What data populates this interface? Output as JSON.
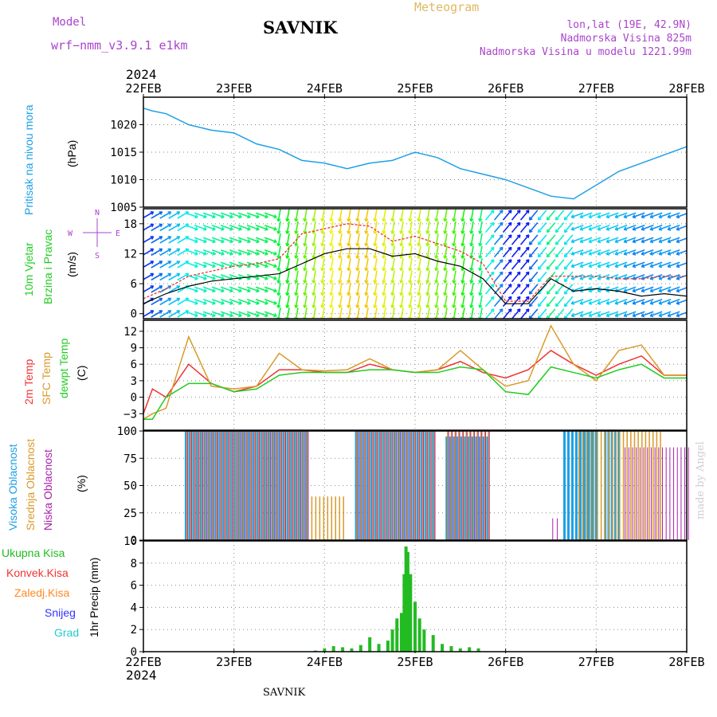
{
  "header": {
    "model_label": "Model",
    "model_name": "wrf−nmm_v3.9.1  e1km",
    "station": "SAVNIK",
    "product": "Meteogram",
    "lonlat": "lon,lat (19E, 42.9N)",
    "elevation": "Nadmorska Visina 825m",
    "model_elevation": "Nadmorska Visina u modelu 1221.99m",
    "watermark": "made by Angel",
    "footer_station": "SAVNIK"
  },
  "colors": {
    "pressure": "#1ea0e6",
    "temp2m": "#ee3333",
    "sfc": "#d89a2a",
    "dewpt": "#22cc22",
    "high_cloud": "#1ea0e6",
    "mid_cloud": "#d89a2a",
    "low_cloud": "#aa22aa",
    "total_precip": "#22bb22",
    "conv_precip": "#ee3333",
    "strat_precip": "#ff8822",
    "snow": "#3333ff",
    "hail": "#22cccc",
    "axis": "#000000",
    "title_purple": "#aa44cc",
    "meteogram_label": "#e0b860"
  },
  "time_axis": {
    "year": "2024",
    "labels": [
      "22FEB",
      "23FEB",
      "24FEB",
      "25FEB",
      "26FEB",
      "27FEB",
      "28FEB"
    ]
  },
  "chart_data": [
    {
      "type": "line",
      "panel": "pressure",
      "y_label_parts": [
        "Pritisak na nivou mora"
      ],
      "unit": "(hPa)",
      "ylim": [
        1005,
        1025
      ],
      "yticks": [
        "1005",
        "1010",
        "1015",
        "1020"
      ],
      "grid": true,
      "series": [
        {
          "x": [
            0,
            0.1,
            0.25,
            0.5,
            0.75,
            1.0,
            1.25,
            1.5,
            1.75,
            2.0,
            2.25,
            2.5,
            2.75,
            3.0,
            3.25,
            3.5,
            3.75,
            4.0,
            4.25,
            4.5,
            4.75,
            5.0,
            5.25,
            5.5,
            5.75,
            6.0
          ],
          "y": [
            1023,
            1022.5,
            1022,
            1020,
            1019,
            1018.5,
            1016.5,
            1015.5,
            1013.5,
            1013,
            1012,
            1013,
            1013.5,
            1015,
            1014,
            1012,
            1011,
            1010,
            1008.5,
            1007,
            1006.5,
            1009,
            1011.5,
            1013,
            1014.5,
            1016
          ]
        }
      ]
    },
    {
      "type": "line",
      "panel": "wind",
      "y_label_parts": [
        "10m Vjetar",
        "Brzina i Pravac"
      ],
      "unit": "(m/s)",
      "compass": [
        "N",
        "E",
        "S",
        "W"
      ],
      "ylim": [
        -1,
        21
      ],
      "yticks": [
        "0",
        "6",
        "12",
        "18"
      ],
      "grid": true,
      "series": [
        {
          "name": "speed",
          "x": [
            0,
            0.25,
            0.5,
            0.75,
            1.0,
            1.25,
            1.5,
            1.75,
            2.0,
            2.25,
            2.5,
            2.75,
            3.0,
            3.25,
            3.5,
            3.75,
            4.0,
            4.25,
            4.5,
            4.75,
            5.0,
            5.25,
            5.5,
            5.75,
            6.0
          ],
          "y": [
            2,
            4,
            5.5,
            6.5,
            7,
            7.5,
            8,
            10,
            12,
            13,
            13,
            11.5,
            12,
            10.5,
            9.5,
            7,
            2,
            2,
            7,
            4.5,
            5,
            4.5,
            3.5,
            4,
            3.5
          ]
        },
        {
          "name": "gust",
          "x": [
            0,
            0.25,
            0.5,
            0.75,
            1.0,
            1.25,
            1.5,
            1.75,
            2.0,
            2.25,
            2.5,
            2.75,
            3.0,
            3.25,
            3.5,
            3.75,
            4.0,
            4.25,
            4.5,
            4.75,
            5.0,
            5.25,
            5.5,
            5.75,
            6.0
          ],
          "y": [
            3,
            5,
            7.5,
            8.5,
            9.5,
            10,
            11,
            16,
            17,
            18,
            17.5,
            14.5,
            15.5,
            14,
            12.5,
            10,
            2.5,
            2.5,
            7.5,
            7.5,
            7.5,
            7,
            7,
            7.5,
            7.5
          ]
        }
      ]
    },
    {
      "type": "line",
      "panel": "temperature",
      "y_label_parts": [
        "2m Temp",
        "SFC Temp",
        "dewpt Temp"
      ],
      "unit": "(C)",
      "ylim": [
        -6,
        14
      ],
      "yticks": [
        "−3",
        "0",
        "3",
        "6",
        "9",
        "12"
      ],
      "grid": true,
      "series": [
        {
          "name": "2m Temp",
          "x": [
            0,
            0.1,
            0.25,
            0.5,
            0.75,
            1.0,
            1.25,
            1.5,
            1.75,
            2.0,
            2.25,
            2.5,
            2.75,
            3.0,
            3.25,
            3.5,
            3.75,
            4.0,
            4.25,
            4.5,
            4.75,
            5.0,
            5.25,
            5.5,
            5.75,
            6.0
          ],
          "y": [
            -3,
            1.5,
            0,
            6,
            2.5,
            1,
            2,
            5,
            5,
            4.5,
            4.5,
            6,
            5,
            4.5,
            5,
            6.5,
            4.5,
            3.5,
            5,
            8.5,
            6,
            4,
            6,
            7.5,
            4,
            4
          ]
        },
        {
          "name": "SFC Temp",
          "x": [
            0,
            0.1,
            0.25,
            0.5,
            0.75,
            1.0,
            1.25,
            1.5,
            1.75,
            2.0,
            2.25,
            2.5,
            2.75,
            3.0,
            3.25,
            3.5,
            3.75,
            4.0,
            4.25,
            4.5,
            4.75,
            5.0,
            5.25,
            5.5,
            5.75,
            6.0
          ],
          "y": [
            -4,
            -3,
            -2,
            11,
            2,
            1.5,
            2,
            8,
            5,
            4.8,
            5,
            7,
            5,
            4.5,
            5,
            8.5,
            5,
            2,
            3,
            13,
            6,
            3,
            8.5,
            9.5,
            4,
            4
          ]
        },
        {
          "name": "dewpt Temp",
          "x": [
            0,
            0.1,
            0.25,
            0.5,
            0.75,
            1.0,
            1.25,
            1.5,
            1.75,
            2.0,
            2.25,
            2.5,
            2.75,
            3.0,
            3.25,
            3.5,
            3.75,
            4.0,
            4.25,
            4.5,
            4.75,
            5.0,
            5.25,
            5.5,
            5.75,
            6.0
          ],
          "y": [
            -4,
            -4,
            0,
            2.5,
            2.5,
            1,
            1.5,
            4,
            4.5,
            4.5,
            4.5,
            5,
            5,
            4.5,
            4.5,
            5.5,
            5,
            1,
            0.5,
            5.5,
            4.5,
            3.5,
            5,
            6,
            3.5,
            3.5
          ]
        }
      ]
    },
    {
      "type": "bar",
      "panel": "cloud",
      "y_label_parts": [
        "Visoka Oblacnost",
        "Srednja Oblacnost",
        "Niska Oblacnost"
      ],
      "unit": "(%)",
      "ylim": [
        0,
        100
      ],
      "yticks": [
        "0",
        "25",
        "50",
        "75",
        "100"
      ],
      "grid": true,
      "series": [
        {
          "name": "Visoka Oblacnost",
          "segments": [
            [
              0.47,
              1.8,
              100
            ],
            [
              2.35,
              3.2,
              100
            ],
            [
              3.35,
              3.8,
              95
            ],
            [
              4.65,
              5.0,
              100
            ],
            [
              5.1,
              5.25,
              100
            ]
          ]
        },
        {
          "name": "Srednja Oblacnost",
          "segments": [
            [
              0.47,
              1.8,
              100
            ],
            [
              1.85,
              2.2,
              40
            ],
            [
              2.35,
              3.2,
              100
            ],
            [
              3.35,
              3.8,
              100
            ],
            [
              4.8,
              5.7,
              100
            ]
          ]
        },
        {
          "name": "Niska Oblacnost",
          "segments": [
            [
              0.47,
              1.8,
              100
            ],
            [
              2.35,
              3.2,
              100
            ],
            [
              3.35,
              3.8,
              100
            ],
            [
              4.5,
              4.55,
              20
            ],
            [
              5.3,
              6.0,
              85
            ]
          ]
        }
      ]
    },
    {
      "type": "bar",
      "panel": "precipitation",
      "y_label_parts": [
        "Ukupna Kisa",
        "Konvek.Kisa",
        "Zaledj.Kisa",
        "Snijeg",
        "Grad"
      ],
      "unit": "1hr Precip (mm)",
      "ylim": [
        0,
        10
      ],
      "yticks": [
        "0",
        "2",
        "4",
        "6",
        "8",
        "10"
      ],
      "grid": true,
      "series": [
        {
          "name": "Ukupna Kisa",
          "x": [
            1.9,
            2.0,
            2.1,
            2.2,
            2.3,
            2.4,
            2.5,
            2.6,
            2.7,
            2.75,
            2.8,
            2.85,
            2.88,
            2.9,
            2.92,
            2.95,
            3.0,
            3.05,
            3.1,
            3.2,
            3.3,
            3.4,
            3.5,
            3.6,
            3.7
          ],
          "values": [
            0.1,
            0.3,
            0.5,
            0.4,
            0.3,
            0.6,
            1.3,
            0.7,
            1.0,
            2.0,
            3.0,
            3.5,
            7.0,
            9.5,
            9.0,
            7.0,
            4.5,
            3.0,
            2.0,
            1.5,
            0.7,
            0.5,
            0.3,
            0.4,
            0.3
          ]
        }
      ]
    }
  ]
}
